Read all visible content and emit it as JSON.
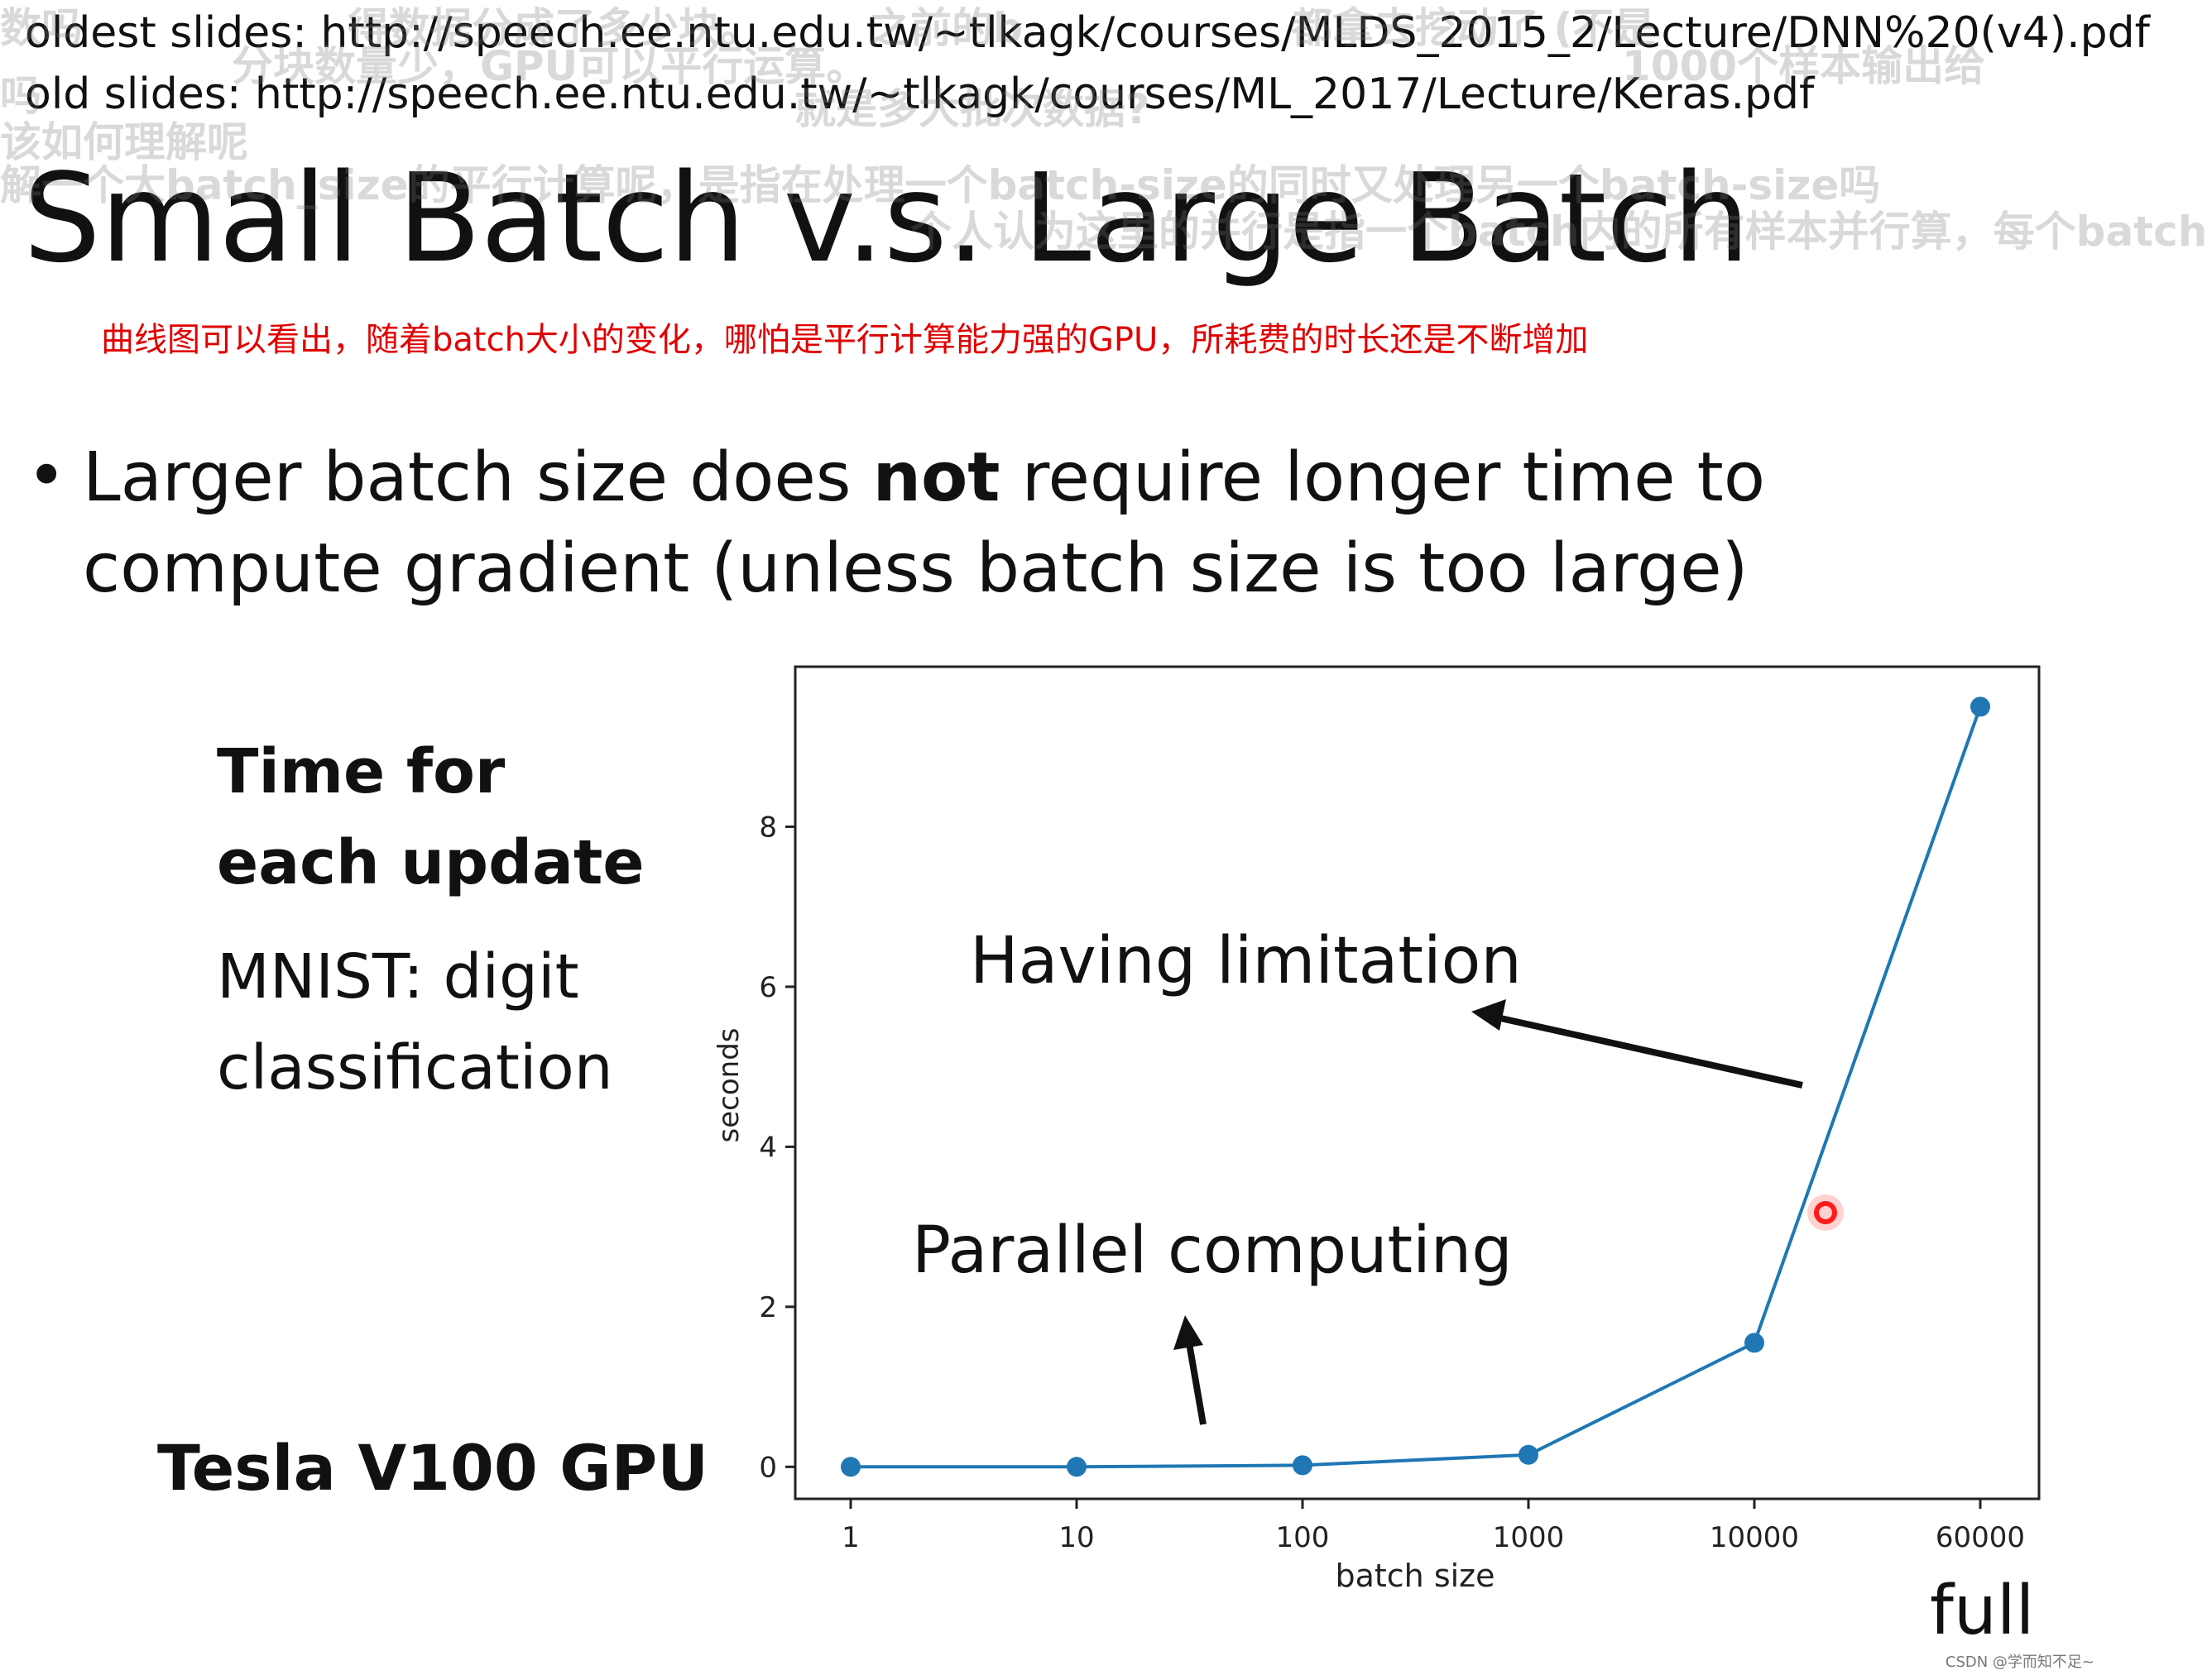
{
  "header": {
    "oldest_slides": "oldest slides: http://speech.ee.ntu.edu.tw/~tlkagk/courses/MLDS_2015_2/Lecture/DNN%20(v4).pdf",
    "old_slides": "old slides: http://speech.ee.ntu.edu.tw/~tlkagk/courses/ML_2017/Lecture/Keras.pdf"
  },
  "slide": {
    "title": "Small Batch v.s. Large Batch",
    "annotation": "曲线图可以看出，随着batch大小的变化，哪怕是平行计算能力强的GPU，所耗费的时长还是不断增加",
    "bullet": {
      "line1_pre": "Larger batch size does ",
      "line1_bold": "not",
      "line1_post": " require longer time to",
      "line2": "compute gradient  (unless batch size is too large)"
    },
    "side_label": {
      "line1": "Time for",
      "line2": "each update",
      "line3": "MNIST: digit",
      "line4": "classification"
    },
    "gpu_label": "Tesla V100 GPU",
    "full_label": "full",
    "overlay_snippets": [
      "数吗",
      "得数据分成了多少块。",
      "之前的b",
      "都拿去挖动了 (不是",
      "分块数量少，GPU可以平行运算。",
      "1000个样本输出给",
      "吗",
      "就是多大批次数据?",
      "该如何理解呢",
      "解一个大batch_size的平行计算呢，是指在处理一个batch-size的同时又处理另一个batch-size吗",
      "个人认为这里的并行是指一个batch内的所有样本并行算，每个batch"
    ]
  },
  "chart_data": {
    "type": "line",
    "categories": [
      "1",
      "10",
      "100",
      "1000",
      "10000",
      "60000"
    ],
    "values": [
      0.0,
      0.0,
      0.02,
      0.15,
      1.55,
      9.5
    ],
    "xlabel": "batch size",
    "ylabel": "seconds",
    "yticks": [
      0,
      2,
      4,
      6,
      8
    ],
    "ylim": [
      -0.4,
      10.0
    ],
    "line_color": "#1f77b4",
    "annotations": [
      "Having limitation",
      "Parallel computing"
    ]
  },
  "footer": {
    "watermark": "CSDN @学而知不足~"
  }
}
